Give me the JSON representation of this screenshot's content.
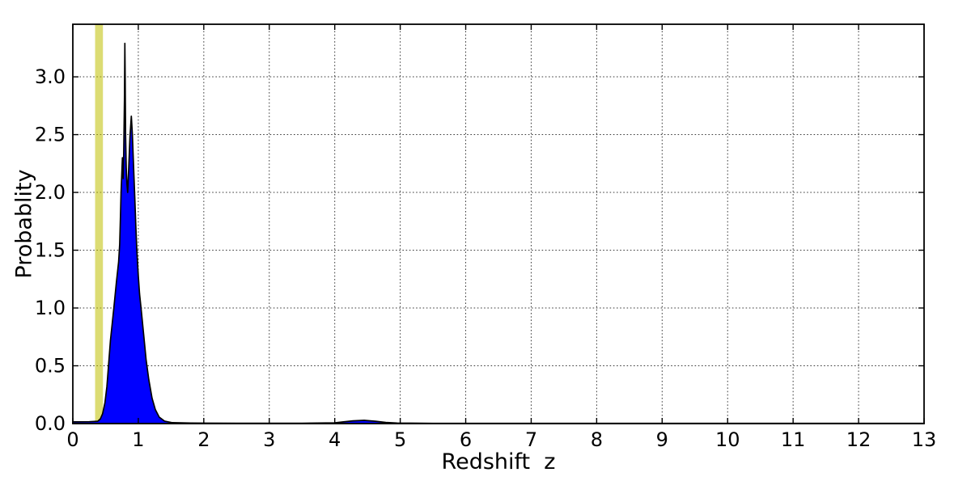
{
  "figure": {
    "background": "#ffffff"
  },
  "chart_data": {
    "type": "area",
    "title": "",
    "xlabel": "Redshift  z",
    "ylabel": "Probablity",
    "xlim": [
      0,
      13
    ],
    "ylim": [
      0,
      3.455
    ],
    "xtick_values": [
      0,
      1,
      2,
      3,
      4,
      5,
      6,
      7,
      8,
      9,
      10,
      11,
      12,
      13
    ],
    "xtick_labels": [
      "0",
      "1",
      "2",
      "3",
      "4",
      "5",
      "6",
      "7",
      "8",
      "9",
      "10",
      "11",
      "12",
      "13"
    ],
    "ytick_values": [
      0,
      0.5,
      1,
      1.5,
      2,
      2.5,
      3
    ],
    "ytick_labels": [
      "0.0",
      "0.5",
      "1.0",
      "1.5",
      "2.0",
      "2.5",
      "3.0"
    ],
    "grid": {
      "style": "dotted",
      "color": "#3a3a3a",
      "x_values": [
        1,
        2,
        3,
        4,
        5,
        6,
        7,
        8,
        9,
        10,
        11,
        12
      ],
      "y_values": [
        0.5,
        1,
        1.5,
        2,
        2.5,
        3
      ]
    },
    "band": {
      "name": "highlight-band",
      "x0": 0.34,
      "x1": 0.46,
      "color": "#bfbf00",
      "opacity": 0.55
    },
    "axes_color": "#000000",
    "series": [
      {
        "name": "redshift-probability-density",
        "fill_color": "#0000ff",
        "edge_color": "#000000",
        "peak_value": 3.29,
        "peak_z": 0.8,
        "points": [
          [
            0.0,
            0.015
          ],
          [
            0.25,
            0.016
          ],
          [
            0.38,
            0.02
          ],
          [
            0.42,
            0.04
          ],
          [
            0.455,
            0.085
          ],
          [
            0.49,
            0.18
          ],
          [
            0.52,
            0.32
          ],
          [
            0.545,
            0.5
          ],
          [
            0.575,
            0.72
          ],
          [
            0.627,
            1.0
          ],
          [
            0.665,
            1.22
          ],
          [
            0.7,
            1.4
          ],
          [
            0.715,
            1.55
          ],
          [
            0.728,
            1.8
          ],
          [
            0.737,
            2.0
          ],
          [
            0.748,
            2.16
          ],
          [
            0.757,
            2.3
          ],
          [
            0.763,
            2.22
          ],
          [
            0.769,
            2.12
          ],
          [
            0.776,
            2.3
          ],
          [
            0.788,
            2.8
          ],
          [
            0.795,
            3.29
          ],
          [
            0.8,
            3.0
          ],
          [
            0.806,
            2.5
          ],
          [
            0.815,
            2.22
          ],
          [
            0.825,
            2.08
          ],
          [
            0.838,
            2.0
          ],
          [
            0.852,
            2.18
          ],
          [
            0.872,
            2.48
          ],
          [
            0.893,
            2.66
          ],
          [
            0.91,
            2.5
          ],
          [
            0.928,
            2.22
          ],
          [
            0.947,
            1.95
          ],
          [
            0.963,
            1.7
          ],
          [
            0.978,
            1.5
          ],
          [
            1.0,
            1.28
          ],
          [
            1.02,
            1.12
          ],
          [
            1.042,
            1.0
          ],
          [
            1.08,
            0.78
          ],
          [
            1.12,
            0.55
          ],
          [
            1.16,
            0.38
          ],
          [
            1.21,
            0.22
          ],
          [
            1.26,
            0.12
          ],
          [
            1.32,
            0.055
          ],
          [
            1.4,
            0.022
          ],
          [
            1.52,
            0.008
          ],
          [
            1.8,
            0.004
          ],
          [
            2.5,
            0.003
          ],
          [
            3.5,
            0.003
          ],
          [
            4.0,
            0.006
          ],
          [
            4.12,
            0.014
          ],
          [
            4.28,
            0.024
          ],
          [
            4.45,
            0.028
          ],
          [
            4.62,
            0.02
          ],
          [
            4.78,
            0.01
          ],
          [
            4.95,
            0.005
          ],
          [
            5.5,
            0.002
          ],
          [
            13.0,
            0.002
          ]
        ]
      }
    ]
  }
}
